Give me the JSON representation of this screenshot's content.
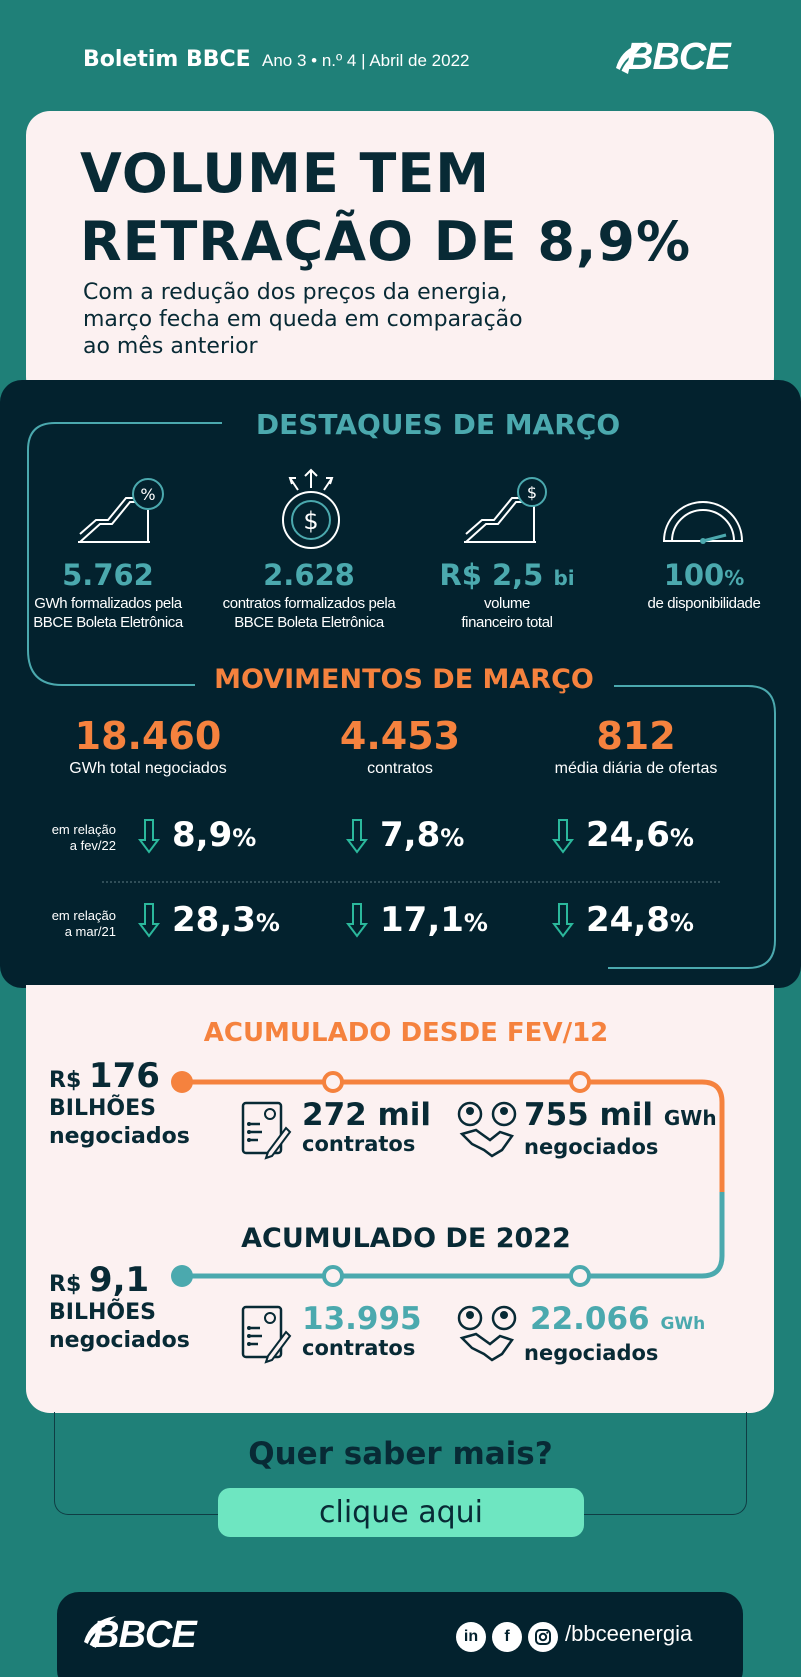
{
  "header": {
    "title": "Boletim BBCE",
    "meta": "Ano 3 • n.º 4 | Abril de 2022",
    "logo": "BBCE"
  },
  "hero": {
    "headline_1": "VOLUME TEM",
    "headline_2": "RETRAÇÃO DE 8,9%",
    "subhead_1": "Com a redução dos preços da energia,",
    "subhead_2": "março fecha em queda em comparação",
    "subhead_3": "ao mês anterior"
  },
  "destaques": {
    "title": "DESTAQUES DE MARÇO",
    "items": [
      {
        "icon": "chart-percent-icon",
        "value": "5.762",
        "unit": "",
        "label_1": "GWh formalizados pela",
        "label_2": "BBCE Boleta Eletrônica"
      },
      {
        "icon": "dollar-coin-icon",
        "value": "2.628",
        "unit": "",
        "label_1": "contratos formalizados pela",
        "label_2": "BBCE Boleta Eletrônica"
      },
      {
        "icon": "chart-dollar-icon",
        "value": "R$ 2,5",
        "unit": "bi",
        "label_1": "volume",
        "label_2": "financeiro total"
      },
      {
        "icon": "gauge-icon",
        "value": "100",
        "unit": "%",
        "label_1": "de disponibilidade",
        "label_2": ""
      }
    ]
  },
  "movimentos": {
    "title": "MOVIMENTOS DE MARÇO",
    "items": [
      {
        "value": "18.460",
        "label": "GWh total negociados"
      },
      {
        "value": "4.453",
        "label": "contratos"
      },
      {
        "value": "812",
        "label": "média diária de ofertas"
      }
    ],
    "rows": [
      {
        "label_1": "em relação",
        "label_2": "a fev/22",
        "values": [
          "8,9",
          "7,8",
          "24,6"
        ]
      },
      {
        "label_1": "em relação",
        "label_2": "a mar/21",
        "values": [
          "28,3",
          "17,1",
          "24,8"
        ]
      }
    ],
    "pct_sign": "%"
  },
  "acumulado_total": {
    "title": "ACUMULADO DESDE FEV/12",
    "prefix": "R$",
    "value": "176",
    "label_1": "BILHÕES",
    "label_2": "negociados",
    "contracts_value": "272 mil",
    "contracts_label": "contratos",
    "gwh_value": "755 mil",
    "gwh_unit": "GWh",
    "gwh_label": "negociados"
  },
  "acumulado_2022": {
    "title": "ACUMULADO DE 2022",
    "prefix": "R$",
    "value": "9,1",
    "label_1": "BILHÕES",
    "label_2": "negociados",
    "contracts_value": "13.995",
    "contracts_label": "contratos",
    "gwh_value": "22.066",
    "gwh_unit": "GWh",
    "gwh_label": "negociados"
  },
  "cta": {
    "question": "Quer saber mais?",
    "button": "clique aqui"
  },
  "footer": {
    "logo": "BBCE",
    "social_icons": [
      "linkedin-icon",
      "facebook-icon",
      "instagram-icon"
    ],
    "linkedin": "in",
    "facebook": "f",
    "handle": "/bbceenergia"
  },
  "colors": {
    "teal_bg": "#1f8078",
    "dark": "#03222e",
    "cream": "#fcf1f1",
    "orange": "#f5823e",
    "teal_accent": "#4ba9ae",
    "button": "#6ee6c1"
  }
}
